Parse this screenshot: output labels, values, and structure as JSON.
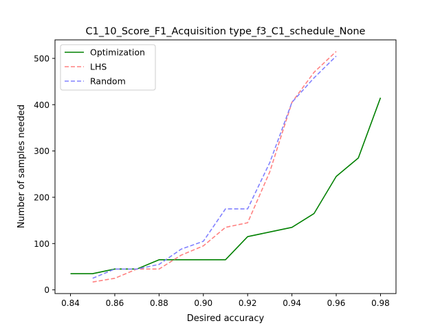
{
  "chart_data": {
    "type": "line",
    "title": "C1_10_Score_F1_Acquisition type_f3_C1_schedule_None",
    "xlabel": "Desired accuracy",
    "ylabel": "Number of samples needed",
    "xlim": [
      0.833,
      0.987
    ],
    "ylim": [
      -8,
      540
    ],
    "xticks": [
      0.84,
      0.86,
      0.88,
      0.9,
      0.92,
      0.94,
      0.96,
      0.98
    ],
    "xtick_labels": [
      "0.84",
      "0.86",
      "0.88",
      "0.90",
      "0.92",
      "0.94",
      "0.96",
      "0.98"
    ],
    "yticks": [
      0,
      100,
      200,
      300,
      400,
      500
    ],
    "ytick_labels": [
      "0",
      "100",
      "200",
      "300",
      "400",
      "500"
    ],
    "grid": false,
    "legend_position": "top-left",
    "series": [
      {
        "name": "Optimization",
        "color": "#008000",
        "style": "solid",
        "x": [
          0.84,
          0.85,
          0.86,
          0.87,
          0.88,
          0.89,
          0.9,
          0.91,
          0.92,
          0.93,
          0.94,
          0.95,
          0.96,
          0.97,
          0.98
        ],
        "y": [
          35,
          35,
          45,
          45,
          65,
          65,
          65,
          65,
          115,
          125,
          135,
          165,
          245,
          285,
          415
        ]
      },
      {
        "name": "LHS",
        "color": "#ff8080",
        "style": "dashed",
        "x": [
          0.85,
          0.86,
          0.87,
          0.88,
          0.89,
          0.9,
          0.91,
          0.92,
          0.93,
          0.94,
          0.95,
          0.96
        ],
        "y": [
          17,
          25,
          45,
          45,
          75,
          95,
          135,
          145,
          255,
          405,
          470,
          515
        ]
      },
      {
        "name": "Random",
        "color": "#8080ff",
        "style": "dashed",
        "x": [
          0.85,
          0.86,
          0.87,
          0.88,
          0.89,
          0.9,
          0.91,
          0.92,
          0.93,
          0.94,
          0.95,
          0.96
        ],
        "y": [
          25,
          45,
          45,
          55,
          88,
          105,
          175,
          175,
          275,
          405,
          458,
          505
        ]
      }
    ]
  }
}
